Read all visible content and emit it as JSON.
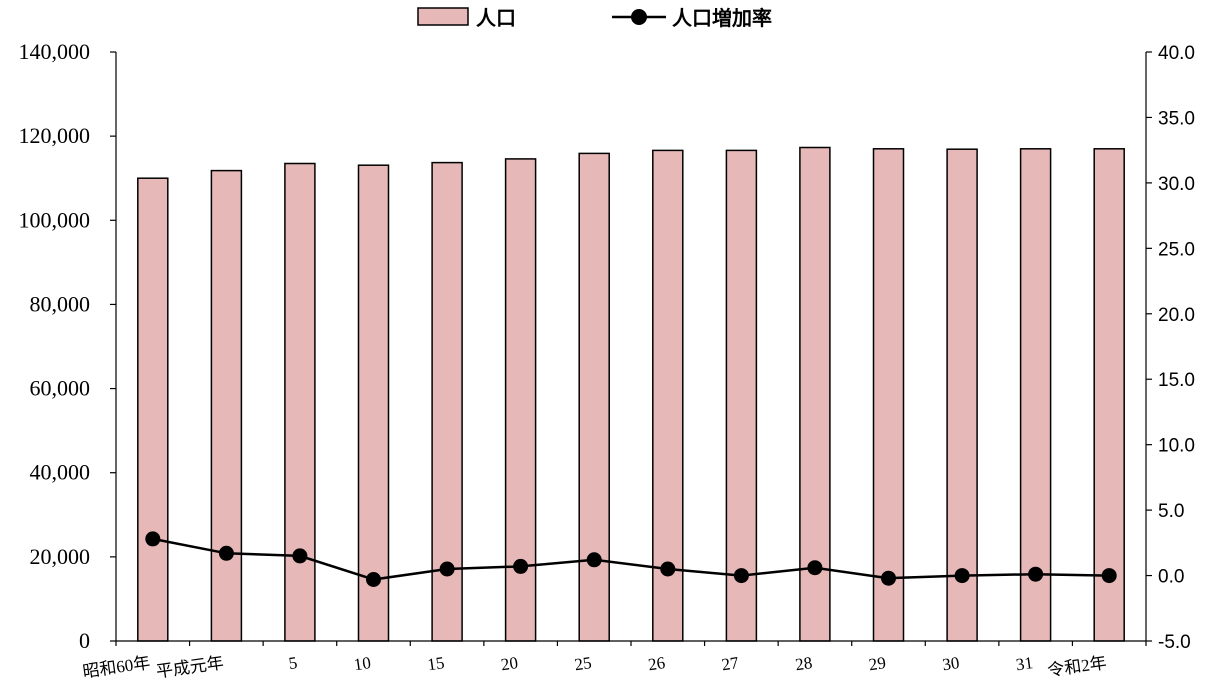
{
  "chart_data": {
    "type": "bar",
    "categories": [
      "昭和60年",
      "平成元年",
      "5",
      "10",
      "15",
      "20",
      "25",
      "26",
      "27",
      "28",
      "29",
      "30",
      "31",
      "令和2年"
    ],
    "series": [
      {
        "name": "人口",
        "type": "bar",
        "axis": "left",
        "color": "#e6b8b7",
        "values": [
          110000,
          111800,
          113500,
          113100,
          113700,
          114600,
          115900,
          116600,
          116600,
          117300,
          117000,
          116900,
          117000,
          117000
        ]
      },
      {
        "name": "人口増加率",
        "type": "line",
        "axis": "right",
        "color": "#000000",
        "values": [
          2.8,
          1.7,
          1.5,
          -0.3,
          0.5,
          0.7,
          1.2,
          0.5,
          0.0,
          0.6,
          -0.2,
          0.0,
          0.1,
          0.0
        ]
      }
    ],
    "ylim_left": [
      0,
      140000
    ],
    "yticks_left": [
      "0",
      "20,000",
      "40,000",
      "60,000",
      "80,000",
      "100,000",
      "120,000",
      "140,000"
    ],
    "ylim_right": [
      -5.0,
      40.0
    ],
    "yticks_right": [
      "-5.0",
      "0.0",
      "5.0",
      "10.0",
      "15.0",
      "20.0",
      "25.0",
      "30.0",
      "35.0",
      "40.0"
    ],
    "legend_position": "top-center",
    "grid": false
  }
}
